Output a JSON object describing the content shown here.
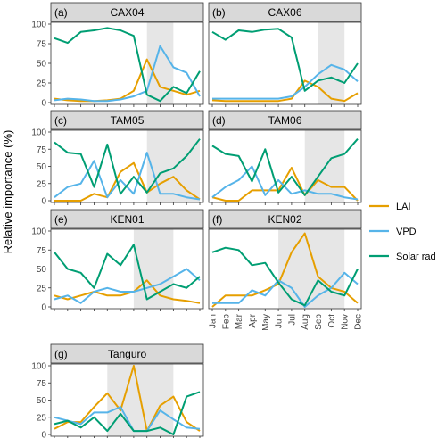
{
  "ylabel": "Relative importance (%)",
  "months": [
    "Jan",
    "Feb",
    "Mar",
    "Apr",
    "May",
    "Jun",
    "Jul",
    "Aug",
    "Sep",
    "Oct",
    "Nov",
    "Dec"
  ],
  "colors": {
    "LAI": "#E69F00",
    "VPD": "#56B4E9",
    "Solar rad": "#009E73",
    "strip": "#d9d9d9",
    "shade": "#e6e6e6"
  },
  "legend": [
    "LAI",
    "VPD",
    "Solar rad"
  ],
  "chart_data": [
    {
      "type": "line",
      "panel": "(a)",
      "title": "CAX04",
      "ylim": [
        0,
        100
      ],
      "yticks": [
        0,
        25,
        50,
        75,
        100
      ],
      "shade": [
        "Aug",
        "Oct"
      ],
      "series": [
        {
          "name": "LAI",
          "values": [
            5,
            3,
            2,
            2,
            3,
            5,
            15,
            55,
            20,
            15,
            10,
            15
          ]
        },
        {
          "name": "VPD",
          "values": [
            3,
            5,
            4,
            2,
            2,
            4,
            8,
            15,
            72,
            45,
            38,
            8
          ]
        },
        {
          "name": "Solar rad",
          "values": [
            82,
            76,
            90,
            92,
            95,
            92,
            85,
            10,
            2,
            20,
            12,
            40
          ]
        }
      ]
    },
    {
      "type": "line",
      "panel": "(b)",
      "title": "CAX06",
      "ylim": [
        0,
        100
      ],
      "yticks": [
        0,
        25,
        50,
        75,
        100
      ],
      "shade": [
        "Sep",
        "Nov"
      ],
      "series": [
        {
          "name": "LAI",
          "values": [
            3,
            2,
            2,
            2,
            2,
            2,
            5,
            28,
            20,
            5,
            2,
            12
          ]
        },
        {
          "name": "VPD",
          "values": [
            5,
            5,
            5,
            5,
            5,
            5,
            8,
            20,
            36,
            48,
            42,
            27
          ]
        },
        {
          "name": "Solar rad",
          "values": [
            90,
            80,
            92,
            90,
            93,
            94,
            83,
            15,
            28,
            32,
            25,
            50
          ]
        }
      ]
    },
    {
      "type": "line",
      "panel": "(c)",
      "title": "TAM05",
      "ylim": [
        0,
        100
      ],
      "yticks": [
        0,
        25,
        50,
        75,
        100
      ],
      "shade": [
        "Aug",
        "Dec"
      ],
      "series": [
        {
          "name": "LAI",
          "values": [
            0,
            0,
            0,
            10,
            5,
            42,
            55,
            12,
            25,
            35,
            15,
            2
          ]
        },
        {
          "name": "VPD",
          "values": [
            5,
            20,
            25,
            58,
            5,
            30,
            10,
            70,
            10,
            10,
            5,
            2
          ]
        },
        {
          "name": "Solar rad",
          "values": [
            85,
            70,
            68,
            20,
            82,
            10,
            35,
            12,
            40,
            47,
            65,
            90
          ]
        }
      ]
    },
    {
      "type": "line",
      "panel": "(d)",
      "title": "TAM06",
      "ylim": [
        0,
        100
      ],
      "yticks": [
        0,
        25,
        50,
        75,
        100
      ],
      "shade": [
        "Aug",
        "Nov"
      ],
      "series": [
        {
          "name": "LAI",
          "values": [
            5,
            0,
            0,
            15,
            15,
            15,
            48,
            8,
            30,
            20,
            20,
            0
          ]
        },
        {
          "name": "VPD",
          "values": [
            5,
            20,
            30,
            50,
            8,
            30,
            10,
            15,
            10,
            10,
            5,
            2
          ]
        },
        {
          "name": "Solar rad",
          "values": [
            80,
            68,
            65,
            28,
            75,
            12,
            35,
            8,
            35,
            62,
            68,
            90
          ]
        }
      ]
    },
    {
      "type": "line",
      "panel": "(e)",
      "title": "KEN01",
      "ylim": [
        0,
        100
      ],
      "yticks": [
        0,
        25,
        50,
        75,
        100
      ],
      "shade": [
        "Jul",
        "Oct"
      ],
      "series": [
        {
          "name": "LAI",
          "values": [
            15,
            10,
            15,
            20,
            15,
            15,
            20,
            35,
            15,
            10,
            8,
            5
          ]
        },
        {
          "name": "VPD",
          "values": [
            10,
            15,
            5,
            20,
            25,
            20,
            20,
            25,
            30,
            40,
            50,
            35
          ]
        },
        {
          "name": "Solar rad",
          "values": [
            72,
            50,
            45,
            25,
            70,
            55,
            82,
            10,
            20,
            30,
            25,
            40
          ]
        }
      ]
    },
    {
      "type": "line",
      "panel": "(f)",
      "title": "KEN02",
      "ylim": [
        0,
        100
      ],
      "yticks": [
        0,
        25,
        50,
        75,
        100
      ],
      "shade": [
        "Jun",
        "Nov"
      ],
      "series": [
        {
          "name": "LAI",
          "values": [
            0,
            15,
            15,
            15,
            22,
            30,
            72,
            97,
            40,
            25,
            20,
            5
          ]
        },
        {
          "name": "VPD",
          "values": [
            5,
            5,
            5,
            22,
            15,
            35,
            25,
            0,
            15,
            25,
            45,
            30
          ]
        },
        {
          "name": "Solar rad",
          "values": [
            72,
            78,
            75,
            55,
            58,
            32,
            10,
            2,
            35,
            20,
            15,
            50
          ]
        }
      ]
    },
    {
      "type": "line",
      "panel": "(g)",
      "title": "Tanguro",
      "ylim": [
        0,
        100
      ],
      "yticks": [
        0,
        25,
        50,
        75,
        100
      ],
      "shade": [
        "May",
        "Oct"
      ],
      "series": [
        {
          "name": "LAI",
          "values": [
            8,
            18,
            18,
            40,
            60,
            35,
            100,
            5,
            42,
            55,
            18,
            5
          ]
        },
        {
          "name": "VPD",
          "values": [
            25,
            20,
            15,
            32,
            32,
            40,
            5,
            5,
            35,
            22,
            10,
            8
          ]
        },
        {
          "name": "Solar rad",
          "values": [
            15,
            20,
            10,
            25,
            5,
            30,
            5,
            5,
            10,
            0,
            55,
            62
          ]
        }
      ]
    }
  ]
}
